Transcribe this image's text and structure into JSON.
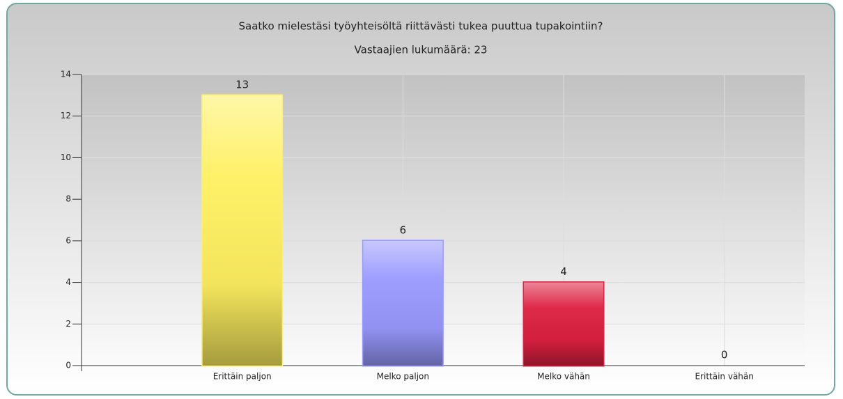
{
  "chart_data": {
    "type": "bar",
    "title": "Saatko mielestäsi työyhteisöltä riittävästi tukea puuttua tupakointiin?",
    "subtitle": "Vastaajien lukumäärä: 23",
    "categories": [
      "Erittäin paljon",
      "Melko paljon",
      "Melko vähän",
      "Erittäin vähän"
    ],
    "values": [
      13,
      6,
      4,
      0
    ],
    "colors": [
      "#fff060",
      "#9999ff",
      "#dc2040",
      "#888888"
    ],
    "ylim": [
      0,
      14
    ],
    "yticks": [
      0,
      2,
      4,
      6,
      8,
      10,
      12,
      14
    ],
    "grid": true
  }
}
